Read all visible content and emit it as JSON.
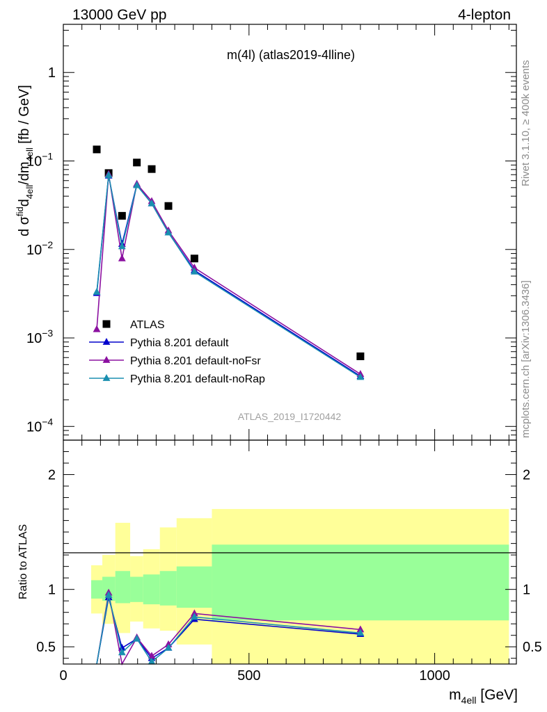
{
  "header": {
    "energy_label": "13000 GeV pp",
    "process_label": "4-lepton"
  },
  "side_labels": {
    "rivet": "Rivet 3.1.10, ≥ 400k events",
    "mcplots": "mcplots.cern.ch [arXiv:1306.3436]"
  },
  "chart_data": [
    {
      "type": "scatter",
      "title": "m(4l) (atlas2019-4lline)",
      "analysis_tag": "ATLAS_2019_I1720442",
      "xlabel": "m_4ell [GeV]",
      "ylabel": "dσfid_4ell/dm_4ell [fb / GeV]",
      "yscale": "log",
      "xlim": [
        0,
        1220
      ],
      "ylim": [
        7e-05,
        3.5
      ],
      "yticks": [
        {
          "v": 0.0001,
          "mant": "10",
          "exp": "−4"
        },
        {
          "v": 0.001,
          "mant": "10",
          "exp": "−3"
        },
        {
          "v": 0.01,
          "mant": "10",
          "exp": "−2"
        },
        {
          "v": 0.1,
          "mant": "10",
          "exp": "−1"
        },
        {
          "v": 1,
          "mant": "1",
          "exp": ""
        }
      ],
      "legend_position": "bottom-left",
      "series": [
        {
          "name": "ATLAS",
          "marker": "square",
          "color": "#000000",
          "x": [
            90,
            122,
            158,
            198,
            238,
            283,
            353,
            800
          ],
          "y": [
            0.135,
            0.073,
            0.024,
            0.096,
            0.081,
            0.031,
            0.0079,
            0.00062
          ]
        },
        {
          "name": "Pythia 8.201 default",
          "marker": "triangle",
          "color": "#0000cc",
          "x": [
            90,
            122,
            158,
            198,
            238,
            283,
            353,
            800
          ],
          "y": [
            0.0032,
            0.068,
            0.0115,
            0.054,
            0.033,
            0.0155,
            0.0058,
            0.00037
          ]
        },
        {
          "name": "Pythia 8.201 default-noFsr",
          "marker": "triangle",
          "color": "#8b10a0",
          "x": [
            90,
            122,
            158,
            198,
            238,
            283,
            353,
            800
          ],
          "y": [
            0.00125,
            0.071,
            0.0079,
            0.055,
            0.035,
            0.0163,
            0.0062,
            0.00039
          ]
        },
        {
          "name": "Pythia 8.201 default-noRap",
          "marker": "triangle",
          "color": "#1a8fb0",
          "x": [
            90,
            122,
            158,
            198,
            238,
            283,
            353,
            800
          ],
          "y": [
            0.0033,
            0.069,
            0.0108,
            0.053,
            0.033,
            0.0155,
            0.0056,
            0.00036
          ]
        }
      ]
    },
    {
      "type": "line",
      "ylabel": "Ratio to ATLAS",
      "xlabel": "m_4ell [GeV]",
      "xlim": [
        0,
        1220
      ],
      "ylim": [
        0.35,
        2.3
      ],
      "xticks": [
        0,
        500,
        1000
      ],
      "yticks": [
        0.5,
        1,
        2
      ],
      "reference_line": 1,
      "bands": {
        "edges": [
          75,
          105,
          140,
          180,
          215,
          260,
          305,
          400,
          1200
        ],
        "inner_lo": [
          0.92,
          0.9,
          0.88,
          0.89,
          0.87,
          0.86,
          0.84,
          0.73
        ],
        "inner_hi": [
          1.08,
          1.11,
          1.16,
          1.11,
          1.13,
          1.16,
          1.2,
          1.39
        ],
        "outer_lo": [
          0.79,
          0.7,
          0.62,
          0.72,
          0.66,
          0.64,
          0.52,
          0.33
        ],
        "outer_hi": [
          1.21,
          1.3,
          1.58,
          1.29,
          1.35,
          1.54,
          1.62,
          1.7
        ],
        "inner_color": "#99ff99",
        "outer_color": "#ffff99"
      },
      "series": [
        {
          "name": "Pythia 8.201 default",
          "color": "#0000cc",
          "x": [
            90,
            122,
            158,
            198,
            238,
            283,
            353,
            800
          ],
          "y": [
            0.024,
            0.93,
            0.49,
            0.57,
            0.4,
            0.49,
            0.74,
            0.61
          ]
        },
        {
          "name": "Pythia 8.201 default-noFsr",
          "color": "#8b10a0",
          "x": [
            90,
            122,
            158,
            198,
            238,
            283,
            353,
            800
          ],
          "y": [
            0.009,
            0.97,
            0.33,
            0.58,
            0.42,
            0.52,
            0.79,
            0.65
          ]
        },
        {
          "name": "Pythia 8.201 default-noRap",
          "color": "#1a8fb0",
          "x": [
            90,
            122,
            158,
            198,
            238,
            283,
            353,
            800
          ],
          "y": [
            0.025,
            0.95,
            0.45,
            0.57,
            0.37,
            0.49,
            0.76,
            0.62
          ]
        }
      ]
    }
  ]
}
